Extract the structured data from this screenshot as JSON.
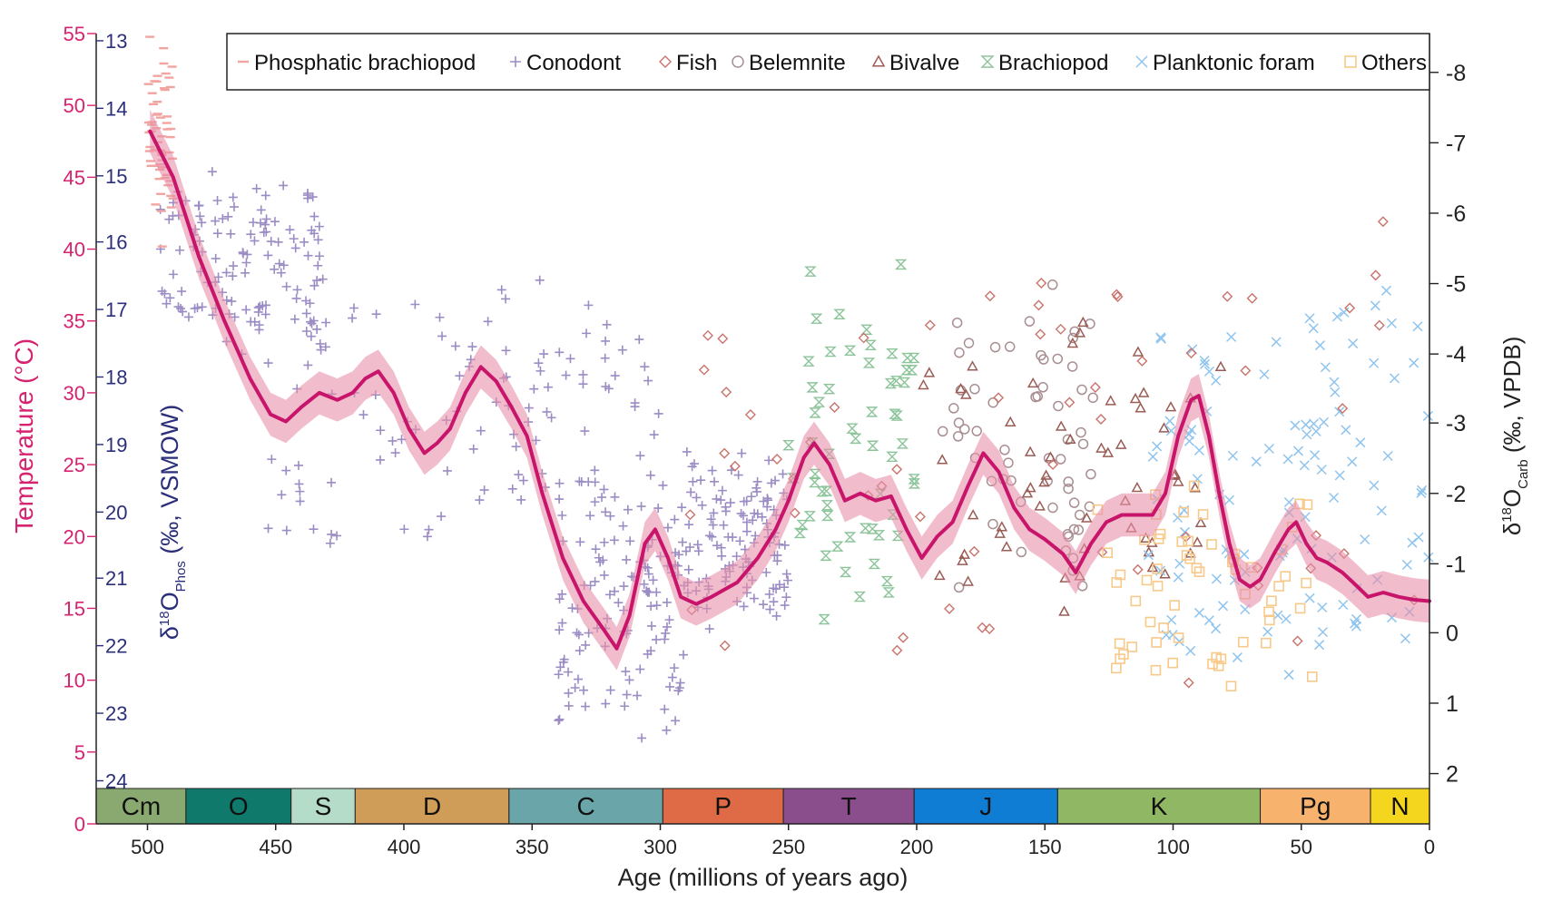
{
  "chart_data": {
    "type": "scatter",
    "x_axis": {
      "label": "Age (millions of years ago)",
      "range": [
        520,
        0
      ],
      "ticks": [
        500,
        450,
        400,
        350,
        300,
        250,
        200,
        150,
        100,
        50,
        0
      ]
    },
    "y_axis_temperature": {
      "label": "Temperature (°C)",
      "range": [
        0,
        55
      ],
      "ticks": [
        0,
        5,
        10,
        15,
        20,
        25,
        30,
        35,
        40,
        45,
        50,
        55
      ],
      "color": "#d6236f"
    },
    "y_axis_phosphate": {
      "label_prefix": "δ",
      "label_sup": "18",
      "label_main": "O",
      "label_sub": "Phos",
      "label_suffix": " (‰, VSMOW)",
      "ticks": [
        13,
        14,
        15,
        16,
        17,
        18,
        19,
        20,
        21,
        22,
        23,
        24
      ],
      "ticks_at_temperature": [
        54.5,
        49.8,
        45.1,
        40.5,
        35.8,
        31.1,
        26.4,
        21.7,
        17.1,
        12.4,
        7.7,
        3.0
      ],
      "color": "#2b2f7a"
    },
    "y_axis_carbonate": {
      "label_prefix": "δ",
      "label_sup": "18",
      "label_main": "O",
      "label_sub": "Carb",
      "label_suffix": " (‰, VPDB)",
      "ticks": [
        -8,
        -7,
        -6,
        -5,
        -4,
        -3,
        -2,
        -1,
        0,
        1,
        2
      ],
      "ticks_at_temperature": [
        52.3,
        47.4,
        42.5,
        37.6,
        32.7,
        27.9,
        23.0,
        18.1,
        13.3,
        8.4,
        3.5
      ],
      "color": "#222222"
    },
    "legend": {
      "placement": "top-right",
      "entries": [
        {
          "name": "Phosphatic brachiopod",
          "marker": "dash",
          "color": "#f2a4a0"
        },
        {
          "name": "Conodont",
          "marker": "plus",
          "color": "#9b8cc4"
        },
        {
          "name": "Fish",
          "marker": "diamond",
          "color": "#c9736c"
        },
        {
          "name": "Belemnite",
          "marker": "circle",
          "color": "#a98e91"
        },
        {
          "name": "Bivalve",
          "marker": "triangle",
          "color": "#9a5c55"
        },
        {
          "name": "Brachiopod",
          "marker": "hourglass",
          "color": "#8cc49a"
        },
        {
          "name": "Planktonic foram",
          "marker": "cross",
          "color": "#8fc4ee"
        },
        {
          "name": "Others",
          "marker": "square",
          "color": "#f7c98b"
        }
      ]
    },
    "periods": [
      {
        "label": "Cm",
        "start": 539,
        "end": 485,
        "color": "#8aa970"
      },
      {
        "label": "O",
        "start": 485,
        "end": 444,
        "color": "#0f7a6c"
      },
      {
        "label": "S",
        "start": 444,
        "end": 419,
        "color": "#b5dcc8"
      },
      {
        "label": "D",
        "start": 419,
        "end": 359,
        "color": "#cf9d58"
      },
      {
        "label": "C",
        "start": 359,
        "end": 299,
        "color": "#6aa5aa"
      },
      {
        "label": "P",
        "start": 299,
        "end": 252,
        "color": "#df6a46"
      },
      {
        "label": "T",
        "start": 252,
        "end": 201,
        "color": "#8a4e8c"
      },
      {
        "label": "J",
        "start": 201,
        "end": 145,
        "color": "#0f7dd3"
      },
      {
        "label": "K",
        "start": 145,
        "end": 66,
        "color": "#90b763"
      },
      {
        "label": "Pg",
        "start": 66,
        "end": 23,
        "color": "#f7b26d"
      },
      {
        "label": "N",
        "start": 23,
        "end": 0,
        "color": "#f4d61f"
      }
    ],
    "mean_curve": {
      "color": "#c8156b",
      "band_color": "#e890a8",
      "points": [
        [
          499,
          48.2
        ],
        [
          490,
          45.0
        ],
        [
          480,
          39.5
        ],
        [
          470,
          35.0
        ],
        [
          460,
          31.0
        ],
        [
          452,
          28.5
        ],
        [
          446,
          28.0
        ],
        [
          440,
          29.0
        ],
        [
          433,
          30.0
        ],
        [
          426,
          29.5
        ],
        [
          420,
          30.0
        ],
        [
          415,
          31.0
        ],
        [
          410,
          31.5
        ],
        [
          404,
          30.0
        ],
        [
          398,
          27.5
        ],
        [
          392,
          25.8
        ],
        [
          387,
          26.5
        ],
        [
          382,
          27.5
        ],
        [
          376,
          30.0
        ],
        [
          370,
          31.8
        ],
        [
          364,
          30.8
        ],
        [
          358,
          29.0
        ],
        [
          352,
          27.0
        ],
        [
          346,
          23.0
        ],
        [
          338,
          18.5
        ],
        [
          330,
          15.5
        ],
        [
          322,
          13.5
        ],
        [
          317,
          12.2
        ],
        [
          312,
          14.5
        ],
        [
          306,
          19.5
        ],
        [
          302,
          20.5
        ],
        [
          297,
          18.5
        ],
        [
          292,
          15.8
        ],
        [
          286,
          15.3
        ],
        [
          280,
          15.8
        ],
        [
          270,
          16.8
        ],
        [
          262,
          18.5
        ],
        [
          255,
          20.5
        ],
        [
          250,
          22.5
        ],
        [
          244,
          25.5
        ],
        [
          240,
          26.5
        ],
        [
          234,
          25.0
        ],
        [
          228,
          22.5
        ],
        [
          222,
          23.0
        ],
        [
          216,
          22.5
        ],
        [
          210,
          22.8
        ],
        [
          204,
          20.5
        ],
        [
          198,
          18.5
        ],
        [
          192,
          20.0
        ],
        [
          186,
          21.0
        ],
        [
          180,
          23.5
        ],
        [
          174,
          25.8
        ],
        [
          168,
          24.5
        ],
        [
          162,
          22.0
        ],
        [
          156,
          20.5
        ],
        [
          150,
          19.8
        ],
        [
          143,
          18.8
        ],
        [
          138,
          17.5
        ],
        [
          132,
          19.5
        ],
        [
          126,
          21.0
        ],
        [
          120,
          21.5
        ],
        [
          114,
          21.5
        ],
        [
          108,
          21.5
        ],
        [
          103,
          23.0
        ],
        [
          98,
          27.0
        ],
        [
          93,
          29.5
        ],
        [
          90,
          29.8
        ],
        [
          86,
          27.0
        ],
        [
          82,
          23.0
        ],
        [
          78,
          19.5
        ],
        [
          74,
          17.0
        ],
        [
          70,
          16.5
        ],
        [
          66,
          17.0
        ],
        [
          60,
          19.0
        ],
        [
          55,
          20.5
        ],
        [
          52,
          21.0
        ],
        [
          48,
          19.5
        ],
        [
          44,
          18.5
        ],
        [
          40,
          18.2
        ],
        [
          34,
          17.5
        ],
        [
          28,
          16.5
        ],
        [
          24,
          15.8
        ],
        [
          18,
          16.1
        ],
        [
          12,
          15.8
        ],
        [
          6,
          15.6
        ],
        [
          0,
          15.5
        ]
      ]
    },
    "species_cloud": [
      {
        "series": "Conodont",
        "age": [
          495,
          430
        ],
        "temp": [
          33,
          45
        ]
      },
      {
        "series": "Conodont",
        "age": [
          460,
          300
        ],
        "temp": [
          18,
          38
        ]
      },
      {
        "series": "Conodont",
        "age": [
          340,
          290
        ],
        "temp": [
          6,
          24
        ]
      },
      {
        "series": "Conodont",
        "age": [
          290,
          250
        ],
        "temp": [
          14,
          26
        ]
      },
      {
        "series": "Brachiopod",
        "age": [
          250,
          200
        ],
        "temp": [
          14,
          39
        ]
      },
      {
        "series": "Belemnite",
        "age": [
          190,
          130
        ],
        "temp": [
          16,
          37
        ]
      },
      {
        "series": "Bivalve",
        "age": [
          200,
          80
        ],
        "temp": [
          13,
          35
        ]
      },
      {
        "series": "Planktonic foram",
        "age": [
          110,
          0
        ],
        "temp": [
          10,
          38
        ]
      },
      {
        "series": "Phosphatic brachiopod",
        "age": [
          500,
          490
        ],
        "temp": [
          40,
          55
        ]
      },
      {
        "series": "Fish",
        "age": [
          300,
          0
        ],
        "temp": [
          10,
          42
        ]
      },
      {
        "series": "Others",
        "age": [
          130,
          45
        ],
        "temp": [
          10,
          24
        ]
      }
    ]
  }
}
